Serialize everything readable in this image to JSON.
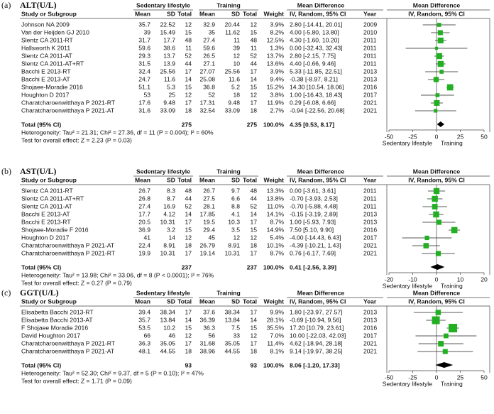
{
  "chart_data": [
    {
      "type": "forest",
      "label": "(a)",
      "title": "ALT(U/L)",
      "groups": [
        "Sedentary lifestyle",
        "Training"
      ],
      "md_header": "Mean Difference",
      "columns": [
        "Study or Subgroup",
        "Mean",
        "SD",
        "Total",
        "Mean",
        "SD",
        "Total",
        "Weight",
        "IV, Random, 95% CI",
        "Year"
      ],
      "studies": [
        "Johnson NA 2009",
        "Van der Heijden GJ 2010",
        "Slentz CA 2011-RT",
        "Hallsworth K 2011",
        "Slentz CA 2011-AT",
        "Slentz CA 2011-AT+RT",
        "Bacchi E 2013-RT",
        "Bacchi E 2013-AT",
        "Shojaee-Moradie 2016",
        "Houghton D 2017",
        "Charatcharoenwitthaya P 2021-RT",
        "Charatcharoenwitthaya P 2021-AT"
      ],
      "sed_mean": [
        35.7,
        39,
        31.7,
        59.6,
        29.3,
        31.5,
        32.4,
        24.7,
        51.1,
        53,
        17.6,
        31.6
      ],
      "sed_sd": [
        22.52,
        15.49,
        17.7,
        38.6,
        13.7,
        13.9,
        25.56,
        11.6,
        5.3,
        25,
        9.48,
        33.09
      ],
      "sed_n": [
        12,
        15,
        48,
        11,
        52,
        44,
        17,
        14,
        15,
        12,
        17,
        18
      ],
      "tr_mean": [
        32.9,
        35,
        27.4,
        59.6,
        26.5,
        27.1,
        27.07,
        25.08,
        36.8,
        52,
        17.31,
        32.54
      ],
      "tr_sd": [
        20.44,
        11.62,
        11,
        39,
        12,
        10,
        25.56,
        11.6,
        5.2,
        18,
        9.48,
        33.09
      ],
      "tr_n": [
        12,
        15,
        48,
        11,
        52,
        44,
        17,
        14,
        15,
        12,
        17,
        18
      ],
      "weights": [
        3.9,
        8.2,
        12.5,
        1.3,
        13.7,
        13.6,
        3.9,
        9.4,
        15.2,
        3.8,
        11.9,
        2.7
      ],
      "weight_labels": [
        "3.9%",
        "8.2%",
        "12.5%",
        "1.3%",
        "13.7%",
        "13.6%",
        "3.9%",
        "9.4%",
        "15.2%",
        "3.8%",
        "11.9%",
        "2.7%"
      ],
      "values": [
        2.8,
        4,
        4.3,
        0,
        2.8,
        4.4,
        5.33,
        -0.38,
        14.3,
        1,
        0.29,
        -0.94
      ],
      "ci_low": [
        -14.41,
        -5.8,
        -1.6,
        -32.43,
        -2.15,
        -0.66,
        -11.85,
        -8.97,
        10.54,
        -16.43,
        -6.08,
        -22.56
      ],
      "ci_high": [
        20.01,
        13.8,
        10.2,
        32.43,
        7.75,
        9.46,
        22.51,
        8.21,
        18.06,
        18.43,
        6.66,
        20.68
      ],
      "value_labels": [
        "2.80 [-14.41, 20.01]",
        "4.00 [-5.80, 13.80]",
        "4.30 [-1.60, 10.20]",
        "0.00 [-32.43, 32.43]",
        "2.80 [-2.15, 7.75]",
        "4.40 [-0.66, 9.46]",
        "5.33 [-11.85, 22.51]",
        "-0.38 [-8.97, 8.21]",
        "14.30 [10.54, 18.06]",
        "1.00 [-16.43, 18.43]",
        "0.29 [-6.08, 6.66]",
        "-0.94 [-22.56, 20.68]"
      ],
      "years": [
        2009,
        2010,
        2011,
        2011,
        2011,
        2011,
        2013,
        2013,
        2016,
        2017,
        2021,
        2021
      ],
      "total_label": "Total (95% CI)",
      "total_sed": 275,
      "total_tr": 275,
      "total_weight": {
        "value": 100,
        "label": "100.0%"
      },
      "pooled": {
        "value": 4.35,
        "low": 0.53,
        "high": 8.17,
        "label": "4.35 [0.53, 8.17]"
      },
      "heterogeneity": "Heterogeneity: Tau² = 21.31; Chi² = 27.36, df = 11 (P = 0.004); I² = 60%",
      "overall_test": "Test for overall effect: Z = 2.23 (P = 0.03)",
      "xlim": [
        -50,
        50
      ],
      "xticks": [
        -50,
        -25,
        0,
        25,
        50
      ],
      "null_line": 0,
      "x_axis_labels": [
        "Sedentary lifestyle",
        "Training"
      ],
      "color": "#22b022"
    },
    {
      "type": "forest",
      "label": "(b)",
      "title": "AST(U/L)",
      "groups": [
        "Sedentary lifestyle",
        "Training"
      ],
      "md_header": "Mean Difference",
      "columns": [
        "Study or Subgroup",
        "Mean",
        "SD",
        "Total",
        "Mean",
        "SD",
        "Total",
        "Weight",
        "IV, Random, 95% CI",
        "Year"
      ],
      "studies": [
        "Slentz CA 2011-RT",
        "Slentz CA 2011-AT+RT",
        "Slentz CA 2011-AT",
        "Bacchi E 2013-AT",
        "Bacchi E 2013-RT",
        "Shojaee-Moradie F 2016",
        "Houghton D 2017",
        "Charatcharoenwitthaya P 2021-AT",
        "Charatcharoenwitthaya P 2021-RT"
      ],
      "sed_mean": [
        26.7,
        26.8,
        27.4,
        17.7,
        20.5,
        36.9,
        41,
        22.4,
        19.9
      ],
      "sed_sd": [
        8.3,
        8.7,
        16.9,
        4.12,
        10.31,
        3.2,
        14,
        8.91,
        10.31
      ],
      "sed_n": [
        48,
        44,
        52,
        14,
        17,
        15,
        12,
        18,
        17
      ],
      "tr_mean": [
        26.7,
        27.5,
        28.1,
        17.85,
        19.5,
        29.4,
        45,
        26.79,
        19.14
      ],
      "tr_sd": [
        9.7,
        6.6,
        8.8,
        4.1,
        10.3,
        3.5,
        12,
        8.91,
        10.31
      ],
      "tr_n": [
        48,
        44,
        52,
        14,
        17,
        15,
        12,
        18,
        17
      ],
      "weights": [
        13.3,
        13.8,
        11,
        14.1,
        8.7,
        14.9,
        5.4,
        10.1,
        8.7
      ],
      "weight_labels": [
        "13.3%",
        "13.8%",
        "11.0%",
        "14.1%",
        "8.7%",
        "14.9%",
        "5.4%",
        "10.1%",
        "8.7%"
      ],
      "values": [
        0,
        -0.7,
        -0.7,
        -0.15,
        1,
        7.5,
        -4,
        -4.39,
        0.76
      ],
      "ci_low": [
        -3.61,
        -3.93,
        -5.88,
        -3.19,
        -5.93,
        5.1,
        -14.43,
        -10.21,
        -6.17
      ],
      "ci_high": [
        3.61,
        2.53,
        4.48,
        2.89,
        7.93,
        9.9,
        6.43,
        1.43,
        7.69
      ],
      "value_labels": [
        "0.00 [-3.61, 3.61]",
        "-0.70 [-3.93, 2.53]",
        "-0.70 [-5.88, 4.48]",
        "-0.15 [-3.19, 2.89]",
        "1.00 [-5.93, 7.93]",
        "7.50 [5.10, 9.90]",
        "-4.00 [-14.43, 6.43]",
        "-4.39 [-10.21, 1.43]",
        "0.76 [-6.17, 7.69]"
      ],
      "years": [
        2011,
        2011,
        2011,
        2013,
        2013,
        2016,
        2017,
        2021,
        2021
      ],
      "total_label": "Total (95% CI)",
      "total_sed": 237,
      "total_tr": 237,
      "total_weight": {
        "value": 100,
        "label": "100.0%"
      },
      "pooled": {
        "value": 0.41,
        "low": -2.56,
        "high": 3.39,
        "label": "0.41 [-2.56, 3.39]"
      },
      "heterogeneity": "Heterogeneity: Tau² = 13.98; Chi² = 33.06, df = 8 (P < 0.0001); I² = 76%",
      "overall_test": "Test for overall effect: Z = 0.27 (P = 0.79)",
      "xlim": [
        -20,
        20
      ],
      "xticks": [
        -20,
        -10,
        0,
        10,
        20
      ],
      "null_line": 0,
      "x_axis_labels": [
        "Sedentary lifestyle",
        "Training"
      ],
      "color": "#22b022"
    },
    {
      "type": "forest",
      "label": "(c)",
      "title": "GGT(U/L)",
      "groups": [
        "Sedentary lifestyle",
        "Training"
      ],
      "md_header": "Mean Difference",
      "columns": [
        "Study or Subgroup",
        "Mean",
        "SD",
        "Total",
        "Mean",
        "SD",
        "Total",
        "Weight",
        "IV, Random, 95% CI",
        "Year"
      ],
      "studies": [
        "Elisabetta Bacchi 2013-RT",
        "Elisabetta Bacchi 2013-AT",
        "F Shojaee Moradie 2016",
        "David Houghton 2017",
        "Charatcharoenwitthaya P 2021-RT",
        "Charatcharoenwitthaya P 2021-AT"
      ],
      "sed_mean": [
        39.4,
        35.7,
        53.5,
        66,
        36.3,
        48.1
      ],
      "sed_sd": [
        38.34,
        13.84,
        10.2,
        46,
        35.05,
        44.55
      ],
      "sed_n": [
        17,
        14,
        15,
        12,
        17,
        18
      ],
      "tr_mean": [
        37.6,
        36.39,
        36.3,
        56,
        31.68,
        38.96
      ],
      "tr_sd": [
        38.34,
        13.84,
        7.5,
        33,
        35.05,
        44.55
      ],
      "tr_n": [
        17,
        14,
        15,
        12,
        17,
        18
      ],
      "weights": [
        9.9,
        28.1,
        35.5,
        7,
        11.4,
        8.1
      ],
      "weight_labels": [
        "9.9%",
        "28.1%",
        "35.5%",
        "7.0%",
        "11.4%",
        "8.1%"
      ],
      "values": [
        1.8,
        -0.69,
        17.2,
        10,
        4.62,
        9.14
      ],
      "ci_low": [
        -23.97,
        -10.94,
        10.79,
        -22.03,
        -18.94,
        -19.97
      ],
      "ci_high": [
        27.57,
        9.56,
        23.61,
        42.03,
        28.18,
        38.25
      ],
      "value_labels": [
        "1.80 [-23.97, 27.57]",
        "-0.69 [-10.94, 9.56]",
        "17.20 [10.79, 23.61]",
        "10.00 [-22.03, 42.03]",
        "4.62 [-18.94, 28.18]",
        "9.14 [-19.97, 38.25]"
      ],
      "years": [
        2013,
        2013,
        2016,
        2017,
        2021,
        2021
      ],
      "total_label": "Total (95% CI)",
      "total_sed": 93,
      "total_tr": 93,
      "total_weight": {
        "value": 100,
        "label": "100.0%"
      },
      "pooled": {
        "value": 8.06,
        "low": -1.2,
        "high": 17.33,
        "label": "8.06 [-1.20, 17.33]"
      },
      "heterogeneity": "Heterogeneity: Tau² = 52.30; Chi² = 9.37, df = 5 (P = 0.10); I² = 47%",
      "overall_test": "Test for overall effect: Z = 1.71 (P = 0.09)",
      "xlim": [
        -50,
        50
      ],
      "xticks": [
        -50,
        -25,
        0,
        25,
        50
      ],
      "null_line": 0,
      "x_axis_labels": [
        "Sedentary lifestyle",
        "Training"
      ],
      "color": "#22b022"
    }
  ]
}
